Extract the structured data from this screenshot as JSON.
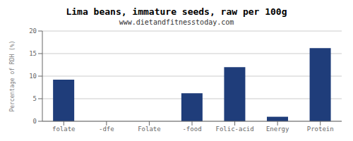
{
  "chart_data": {
    "type": "bar",
    "title": "Lima beans, immature seeds, raw per 100g",
    "subtitle": "www.dietandfitnesstoday.com",
    "categories": [
      "folate",
      "-dfe",
      "Folate",
      "-food",
      "Folic-acid",
      "Energy",
      "Protein"
    ],
    "values": [
      9.2,
      0.0,
      0.0,
      6.2,
      12.0,
      1.0,
      16.2
    ],
    "color": "#1f3d7a",
    "ylabel": "Percentage of RDH (%)",
    "ylim": [
      0,
      20
    ],
    "yticks": [
      0,
      5,
      10,
      15,
      20
    ],
    "grid": true
  }
}
